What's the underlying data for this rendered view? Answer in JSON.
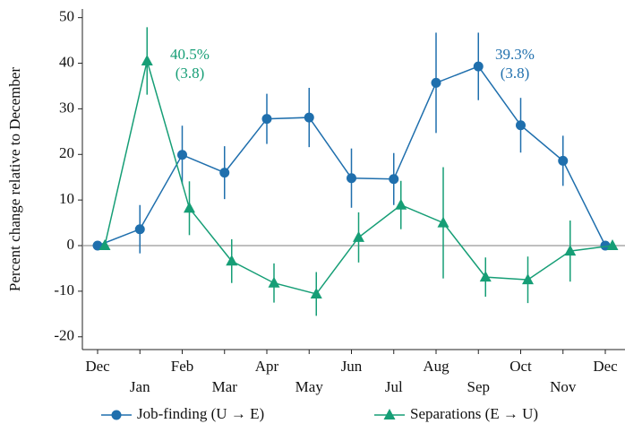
{
  "chart_data": {
    "type": "line",
    "ylabel": "Percent change relative to December",
    "categories": [
      "Dec",
      "Jan",
      "Feb",
      "Mar",
      "Apr",
      "May",
      "Jun",
      "Jul",
      "Aug",
      "Sep",
      "Oct",
      "Nov",
      "Dec"
    ],
    "series": [
      {
        "name": "Job-finding (U → E)",
        "color": "#1f6fad",
        "marker": "circle",
        "values": [
          0,
          3.6,
          19.9,
          16.0,
          27.8,
          28.1,
          14.8,
          14.6,
          35.7,
          39.3,
          26.4,
          18.6,
          0
        ],
        "errors": [
          0,
          5.3,
          6.4,
          5.8,
          5.5,
          6.5,
          6.5,
          5.7,
          11.0,
          7.4,
          6.0,
          5.5,
          0
        ]
      },
      {
        "name": "Separations (E → U)",
        "color": "#169e76",
        "marker": "triangle",
        "values": [
          0,
          40.5,
          8.2,
          -3.4,
          -8.2,
          -10.6,
          1.8,
          8.9,
          5.0,
          -6.9,
          -7.5,
          -1.2,
          0
        ],
        "errors": [
          0,
          7.4,
          5.9,
          4.8,
          4.3,
          4.8,
          5.5,
          5.3,
          12.2,
          4.3,
          5.1,
          6.7,
          0
        ]
      }
    ],
    "annotations": [
      {
        "lines": [
          "40.5%",
          "(3.8)"
        ],
        "color": "#169e76"
      },
      {
        "lines": [
          "39.3%",
          "(3.8)"
        ],
        "color": "#1f6fad"
      }
    ],
    "ylim": [
      -22.8,
      51.9
    ],
    "yticks": [
      -20,
      -10,
      0,
      10,
      20,
      30,
      40,
      50
    ],
    "zero_line": true,
    "legend": "bottom"
  }
}
